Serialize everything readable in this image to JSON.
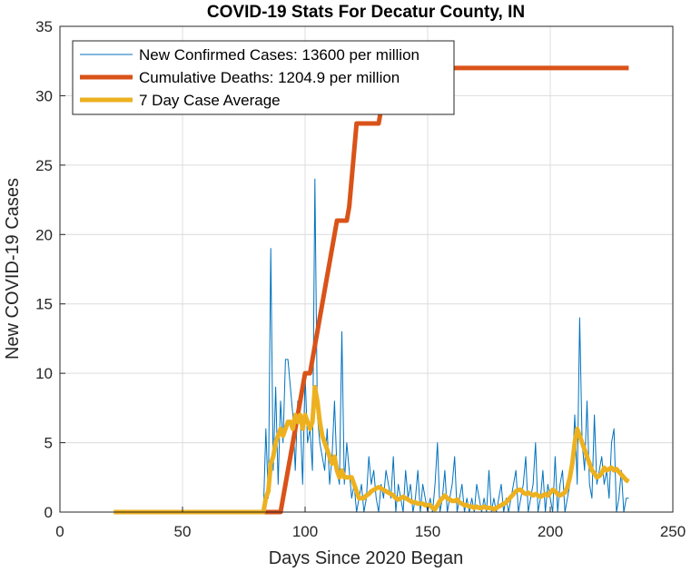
{
  "chart_data": {
    "type": "line",
    "title": "COVID-19 Stats For Decatur County, IN",
    "xlabel": "Days Since 2020 Began",
    "ylabel": "New COVID-19 Cases",
    "xlim": [
      0,
      250
    ],
    "ylim": [
      0,
      35
    ],
    "xticks": [
      0,
      50,
      100,
      150,
      200,
      250
    ],
    "yticks": [
      0,
      5,
      10,
      15,
      20,
      25,
      30,
      35
    ],
    "grid": true,
    "legend_position": "top-left",
    "series": [
      {
        "name": "New Confirmed Cases: 13600 per million",
        "color": "#0072BD",
        "width": "thin",
        "x": [
          22,
          83,
          84,
          85,
          86,
          87,
          88,
          89,
          90,
          91,
          92,
          93,
          94,
          95,
          96,
          97,
          98,
          99,
          100,
          101,
          102,
          103,
          104,
          105,
          106,
          107,
          108,
          109,
          110,
          111,
          112,
          113,
          114,
          115,
          116,
          117,
          118,
          119,
          120,
          121,
          122,
          123,
          124,
          125,
          126,
          127,
          128,
          129,
          130,
          131,
          132,
          133,
          134,
          135,
          136,
          137,
          138,
          139,
          140,
          141,
          142,
          143,
          144,
          145,
          146,
          147,
          148,
          149,
          150,
          151,
          152,
          153,
          154,
          155,
          156,
          157,
          158,
          159,
          160,
          161,
          162,
          163,
          164,
          165,
          166,
          167,
          168,
          169,
          170,
          171,
          172,
          173,
          174,
          175,
          176,
          177,
          178,
          179,
          180,
          181,
          182,
          183,
          184,
          185,
          186,
          187,
          188,
          189,
          190,
          191,
          192,
          193,
          194,
          195,
          196,
          197,
          198,
          199,
          200,
          201,
          202,
          203,
          204,
          205,
          206,
          207,
          208,
          209,
          210,
          211,
          212,
          213,
          214,
          215,
          216,
          217,
          218,
          219,
          220,
          221,
          222,
          223,
          224,
          225,
          226,
          227,
          228,
          229,
          230,
          231,
          232
        ],
        "values": [
          0,
          0,
          6,
          1,
          19,
          3,
          9,
          2,
          8,
          5,
          11,
          11,
          9,
          7,
          3,
          8,
          7,
          2,
          10,
          5,
          6,
          3,
          24,
          7,
          5,
          4,
          3,
          6,
          2,
          4,
          8,
          3,
          2,
          13,
          2,
          5,
          3,
          1,
          2,
          0,
          1,
          2,
          0,
          1,
          4,
          2,
          3,
          1,
          0,
          2,
          1,
          3,
          2,
          1,
          4,
          0,
          2,
          1,
          0,
          3,
          1,
          2,
          0,
          1,
          3,
          0,
          2,
          1,
          0,
          1,
          0,
          2,
          5,
          0,
          1,
          3,
          0,
          1,
          2,
          4,
          0,
          1,
          2,
          0,
          1,
          0,
          1,
          0,
          2,
          1,
          0,
          1,
          0,
          3,
          0,
          1,
          0,
          1,
          2,
          0,
          1,
          0,
          1,
          2,
          3,
          0,
          1,
          2,
          4,
          0,
          1,
          2,
          5,
          0,
          1,
          3,
          0,
          2,
          1,
          0,
          4,
          0,
          2,
          3,
          0,
          1,
          2,
          3,
          7,
          2,
          14,
          5,
          3,
          8,
          2,
          1,
          7,
          2,
          3,
          4,
          2,
          3,
          1,
          5,
          6,
          0,
          1,
          3,
          0,
          1,
          1
        ]
      },
      {
        "name": "Cumulative Deaths: 1204.9 per million",
        "color": "#D95319",
        "width": "thick",
        "x": [
          22,
          90,
          91,
          92,
          93,
          94,
          95,
          96,
          97,
          98,
          99,
          100,
          101,
          102,
          103,
          104,
          105,
          106,
          107,
          108,
          109,
          110,
          111,
          112,
          113,
          114,
          115,
          116,
          117,
          118,
          119,
          120,
          121,
          122,
          123,
          124,
          125,
          126,
          127,
          128,
          129,
          130,
          131,
          132,
          133,
          134,
          135,
          232
        ],
        "values": [
          0,
          0,
          1,
          2,
          3,
          4,
          5,
          6,
          7,
          8,
          9,
          10,
          10,
          10,
          11,
          12,
          13,
          14,
          15,
          16,
          17,
          18,
          19,
          20,
          21,
          21,
          21,
          21,
          21,
          22,
          24,
          26,
          28,
          28,
          28,
          28,
          28,
          28,
          28,
          28,
          28,
          28,
          29,
          30,
          31,
          32,
          32,
          32
        ]
      },
      {
        "name": "7 Day Case Average",
        "color": "#EDB120",
        "width": "thick",
        "x": [
          22,
          83,
          84,
          85,
          86,
          87,
          88,
          89,
          90,
          91,
          92,
          93,
          94,
          95,
          96,
          97,
          98,
          99,
          100,
          101,
          102,
          103,
          104,
          105,
          106,
          107,
          108,
          109,
          110,
          111,
          112,
          113,
          114,
          115,
          116,
          117,
          118,
          119,
          120,
          121,
          122,
          123,
          124,
          125,
          126,
          127,
          128,
          129,
          130,
          131,
          132,
          133,
          134,
          135,
          136,
          137,
          138,
          139,
          140,
          141,
          142,
          143,
          144,
          145,
          146,
          147,
          148,
          149,
          150,
          151,
          152,
          153,
          154,
          155,
          156,
          157,
          158,
          159,
          160,
          161,
          162,
          163,
          164,
          165,
          166,
          167,
          168,
          169,
          170,
          171,
          172,
          173,
          174,
          175,
          176,
          177,
          178,
          179,
          180,
          181,
          182,
          183,
          184,
          185,
          186,
          187,
          188,
          189,
          190,
          191,
          192,
          193,
          194,
          195,
          196,
          197,
          198,
          199,
          200,
          201,
          202,
          203,
          204,
          205,
          206,
          207,
          208,
          209,
          210,
          211,
          212,
          213,
          214,
          215,
          216,
          217,
          218,
          219,
          220,
          221,
          222,
          223,
          224,
          225,
          226,
          227,
          228,
          229,
          230,
          231,
          232
        ],
        "values": [
          0,
          0,
          1,
          1.5,
          3.5,
          4,
          5,
          5.5,
          6,
          5.5,
          6,
          6.5,
          6.5,
          6,
          7,
          6.5,
          7,
          6,
          7,
          6.5,
          6,
          6.5,
          9,
          8,
          6.5,
          5.5,
          5,
          4.5,
          4,
          3.5,
          4,
          3,
          2.5,
          3,
          2.5,
          2.5,
          2.5,
          2.5,
          2,
          1.5,
          1,
          1,
          1,
          1.2,
          1.3,
          1.5,
          1.6,
          1.7,
          1.8,
          1.7,
          1.6,
          1.5,
          1.4,
          1.3,
          1.2,
          1,
          0.9,
          1,
          1.1,
          1,
          0.9,
          0.8,
          0.7,
          0.7,
          0.6,
          0.6,
          0.6,
          0.5,
          0.5,
          0.5,
          0.3,
          0.2,
          0.5,
          0.8,
          1,
          1.2,
          1,
          0.9,
          0.8,
          0.8,
          0.9,
          0.7,
          0.6,
          0.5,
          0.5,
          0.4,
          0.4,
          0.3,
          0.4,
          0.3,
          0.3,
          0.4,
          0.3,
          0.3,
          0.3,
          0.2,
          0.3,
          0.4,
          0.5,
          0.6,
          0.7,
          0.9,
          1.1,
          1.3,
          1.5,
          1.6,
          1.6,
          1.4,
          1.3,
          1.4,
          1.3,
          1.2,
          1.3,
          1.2,
          1.1,
          1.2,
          1.3,
          1.2,
          1.4,
          1.6,
          1.5,
          1.3,
          1.2,
          1.3,
          1.4,
          1.8,
          2.5,
          3.5,
          5,
          6,
          5.5,
          5,
          4.5,
          4,
          3.5,
          3,
          2.8,
          2.5,
          2.6,
          2.8,
          3.2,
          3,
          3.1,
          3.2,
          3,
          3.1,
          2.9,
          2.7,
          2.5,
          2.3,
          2.2
        ]
      }
    ]
  }
}
